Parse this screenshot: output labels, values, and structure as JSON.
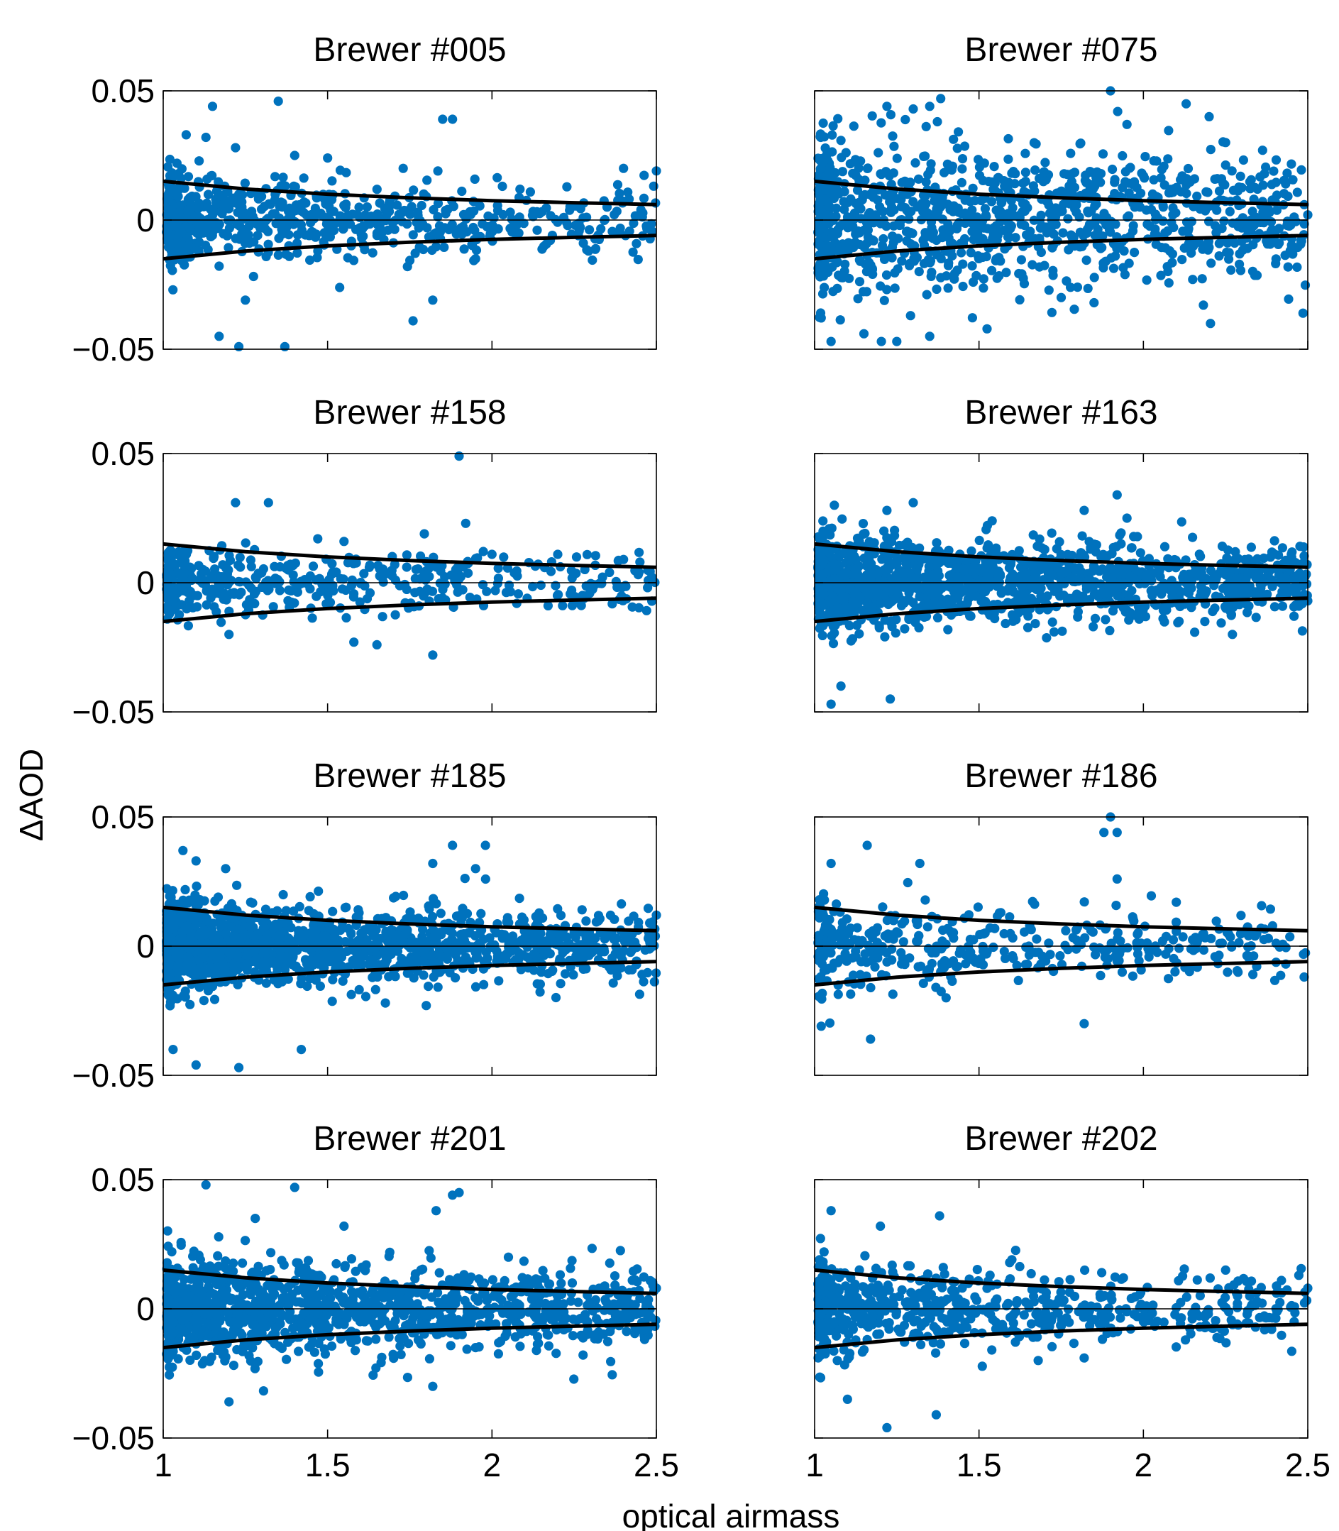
{
  "figure": {
    "ylabel": "ΔAOD",
    "xlabel": "optical airmass"
  },
  "colors": {
    "points": "#0072bd",
    "envelope": "#000000",
    "zero_line": "#000000",
    "axes": "#000000",
    "background": "#ffffff"
  },
  "chart_data": [
    {
      "type": "scatter",
      "title": "Brewer #005",
      "xlim": [
        1,
        2.5
      ],
      "ylim": [
        -0.05,
        0.05
      ],
      "xticks": [
        "1",
        "1.5",
        "2",
        "2.5"
      ],
      "yticks": [
        "-0.05",
        "0",
        "0.05"
      ],
      "grid": false,
      "zero_line": true,
      "envelope": {
        "formula": "±0.015/m",
        "x": [
          1,
          1.25,
          1.5,
          1.75,
          2,
          2.25,
          2.5
        ],
        "upper": [
          0.015,
          0.012,
          0.01,
          0.0086,
          0.0075,
          0.0067,
          0.006
        ],
        "lower": [
          -0.015,
          -0.012,
          -0.01,
          -0.0086,
          -0.0075,
          -0.0067,
          -0.006
        ]
      },
      "points": {
        "n": 700,
        "x_decay": 2.0,
        "spread": 0.0085,
        "y_clip": [
          -0.05,
          0.045
        ],
        "seed": 5,
        "outliers": [
          [
            1.15,
            0.044
          ],
          [
            1.35,
            0.046
          ],
          [
            1.07,
            0.033
          ],
          [
            1.13,
            0.032
          ],
          [
            1.22,
            0.028
          ],
          [
            1.4,
            0.025
          ],
          [
            1.5,
            0.024
          ],
          [
            1.73,
            0.02
          ],
          [
            1.85,
            0.039
          ],
          [
            1.88,
            0.039
          ],
          [
            2.4,
            0.02
          ],
          [
            2.5,
            0.019
          ],
          [
            1.17,
            -0.045
          ],
          [
            1.23,
            -0.049
          ],
          [
            1.37,
            -0.049
          ],
          [
            1.25,
            -0.031
          ],
          [
            1.76,
            -0.039
          ],
          [
            1.82,
            -0.031
          ],
          [
            1.95,
            -0.015
          ],
          [
            2.35,
            0.005
          ]
        ]
      }
    },
    {
      "type": "scatter",
      "title": "Brewer #075",
      "xlim": [
        1,
        2.5
      ],
      "ylim": [
        -0.05,
        0.05
      ],
      "xticks": [
        "1",
        "1.5",
        "2",
        "2.5"
      ],
      "yticks": [
        "-0.05",
        "0",
        "0.05"
      ],
      "grid": false,
      "zero_line": true,
      "envelope": {
        "formula": "±0.015/m",
        "x": [
          1,
          1.25,
          1.5,
          1.75,
          2,
          2.25,
          2.5
        ],
        "upper": [
          0.015,
          0.012,
          0.01,
          0.0086,
          0.0075,
          0.0067,
          0.006
        ],
        "lower": [
          -0.015,
          -0.012,
          -0.01,
          -0.0086,
          -0.0075,
          -0.0067,
          -0.006
        ]
      },
      "points": {
        "n": 1100,
        "x_decay": 1.6,
        "spread": 0.016,
        "y_clip": [
          -0.047,
          0.047
        ],
        "seed": 75,
        "outliers": [
          [
            1.9,
            0.05
          ],
          [
            1.95,
            0.037
          ],
          [
            2.13,
            0.045
          ],
          [
            2.2,
            0.04
          ],
          [
            2.25,
            0.03
          ],
          [
            1.3,
            0.043
          ],
          [
            1.35,
            0.044
          ],
          [
            1.22,
            0.044
          ],
          [
            1.05,
            -0.047
          ],
          [
            1.15,
            -0.044
          ],
          [
            1.25,
            -0.047
          ],
          [
            1.35,
            -0.045
          ],
          [
            1.75,
            -0.03
          ],
          [
            1.85,
            -0.032
          ],
          [
            2.15,
            -0.023
          ],
          [
            2.5,
            0.002
          ]
        ]
      }
    },
    {
      "type": "scatter",
      "title": "Brewer #158",
      "xlim": [
        1,
        2.5
      ],
      "ylim": [
        -0.05,
        0.05
      ],
      "xticks": [
        "1",
        "1.5",
        "2",
        "2.5"
      ],
      "yticks": [
        "-0.05",
        "0",
        "0.05"
      ],
      "grid": false,
      "zero_line": true,
      "envelope": {
        "formula": "±0.015/m",
        "x": [
          1,
          1.25,
          1.5,
          1.75,
          2,
          2.25,
          2.5
        ],
        "upper": [
          0.015,
          0.012,
          0.01,
          0.0086,
          0.0075,
          0.0067,
          0.006
        ],
        "lower": [
          -0.015,
          -0.012,
          -0.01,
          -0.0086,
          -0.0075,
          -0.0067,
          -0.006
        ]
      },
      "points": {
        "n": 500,
        "x_decay": 2.2,
        "spread": 0.0065,
        "y_clip": [
          -0.03,
          0.05
        ],
        "seed": 158,
        "outliers": [
          [
            1.9,
            0.049
          ],
          [
            1.92,
            0.023
          ],
          [
            1.22,
            0.031
          ],
          [
            1.32,
            0.031
          ],
          [
            1.47,
            0.017
          ],
          [
            1.55,
            0.016
          ],
          [
            1.82,
            -0.028
          ],
          [
            1.58,
            -0.023
          ],
          [
            1.65,
            -0.024
          ],
          [
            1.2,
            -0.02
          ],
          [
            2.0,
            0.011
          ],
          [
            2.2,
            0.011
          ],
          [
            2.4,
            0.009
          ],
          [
            2.45,
            0.008
          ]
        ]
      }
    },
    {
      "type": "scatter",
      "title": "Brewer #163",
      "xlim": [
        1,
        2.5
      ],
      "ylim": [
        -0.05,
        0.05
      ],
      "xticks": [
        "1",
        "1.5",
        "2",
        "2.5"
      ],
      "yticks": [
        "-0.05",
        "0",
        "0.05"
      ],
      "grid": false,
      "zero_line": true,
      "envelope": {
        "formula": "±0.015/m",
        "x": [
          1,
          1.25,
          1.5,
          1.75,
          2,
          2.25,
          2.5
        ],
        "upper": [
          0.015,
          0.012,
          0.01,
          0.0086,
          0.0075,
          0.0067,
          0.006
        ],
        "lower": [
          -0.015,
          -0.012,
          -0.01,
          -0.0086,
          -0.0075,
          -0.0067,
          -0.006
        ]
      },
      "points": {
        "n": 1500,
        "x_decay": 1.8,
        "spread": 0.0085,
        "y_clip": [
          -0.047,
          0.035
        ],
        "seed": 163,
        "outliers": [
          [
            1.05,
            -0.047
          ],
          [
            1.08,
            -0.04
          ],
          [
            1.23,
            -0.045
          ],
          [
            1.06,
            0.03
          ],
          [
            1.22,
            0.028
          ],
          [
            1.3,
            0.031
          ],
          [
            1.82,
            0.028
          ],
          [
            1.92,
            0.034
          ],
          [
            1.95,
            0.025
          ],
          [
            2.5,
            -0.007
          ],
          [
            2.45,
            0.011
          ]
        ]
      }
    },
    {
      "type": "scatter",
      "title": "Brewer #185",
      "xlim": [
        1,
        2.5
      ],
      "ylim": [
        -0.05,
        0.05
      ],
      "xticks": [
        "1",
        "1.5",
        "2",
        "2.5"
      ],
      "yticks": [
        "-0.05",
        "0",
        "0.05"
      ],
      "grid": false,
      "zero_line": true,
      "envelope": {
        "formula": "±0.015/m",
        "x": [
          1,
          1.25,
          1.5,
          1.75,
          2,
          2.25,
          2.5
        ],
        "upper": [
          0.015,
          0.012,
          0.01,
          0.0086,
          0.0075,
          0.0067,
          0.006
        ],
        "lower": [
          -0.015,
          -0.012,
          -0.01,
          -0.0086,
          -0.0075,
          -0.0067,
          -0.006
        ]
      },
      "points": {
        "n": 1700,
        "x_decay": 2.3,
        "spread": 0.0085,
        "y_clip": [
          -0.047,
          0.04
        ],
        "seed": 185,
        "outliers": [
          [
            1.06,
            0.037
          ],
          [
            1.1,
            0.033
          ],
          [
            1.19,
            0.03
          ],
          [
            1.88,
            0.039
          ],
          [
            1.98,
            0.039
          ],
          [
            1.82,
            0.032
          ],
          [
            1.95,
            0.03
          ],
          [
            1.1,
            -0.046
          ],
          [
            1.23,
            -0.047
          ],
          [
            1.03,
            -0.04
          ],
          [
            1.42,
            -0.04
          ],
          [
            1.8,
            -0.023
          ],
          [
            2.2,
            0.005
          ],
          [
            2.5,
            0.012
          ]
        ]
      }
    },
    {
      "type": "scatter",
      "title": "Brewer #186",
      "xlim": [
        1,
        2.5
      ],
      "ylim": [
        -0.05,
        0.05
      ],
      "xticks": [
        "1",
        "1.5",
        "2",
        "2.5"
      ],
      "yticks": [
        "-0.05",
        "0",
        "0.05"
      ],
      "grid": false,
      "zero_line": true,
      "envelope": {
        "formula": "±0.015/m",
        "x": [
          1,
          1.25,
          1.5,
          1.75,
          2,
          2.25,
          2.5
        ],
        "upper": [
          0.015,
          0.012,
          0.01,
          0.0086,
          0.0075,
          0.0067,
          0.006
        ],
        "lower": [
          -0.015,
          -0.012,
          -0.01,
          -0.0086,
          -0.0075,
          -0.0067,
          -0.006
        ]
      },
      "points": {
        "n": 420,
        "x_decay": 1.8,
        "spread": 0.0085,
        "y_clip": [
          -0.036,
          0.05
        ],
        "seed": 186,
        "outliers": [
          [
            1.9,
            0.05
          ],
          [
            1.88,
            0.044
          ],
          [
            1.92,
            0.044
          ],
          [
            1.92,
            0.026
          ],
          [
            1.16,
            0.039
          ],
          [
            1.32,
            0.032
          ],
          [
            1.05,
            0.032
          ],
          [
            1.17,
            -0.036
          ],
          [
            1.82,
            -0.03
          ],
          [
            1.4,
            -0.02
          ],
          [
            1.02,
            -0.031
          ],
          [
            2.38,
            0.003
          ],
          [
            2.1,
            0.017
          ]
        ]
      }
    },
    {
      "type": "scatter",
      "title": "Brewer #201",
      "xlim": [
        1,
        2.5
      ],
      "ylim": [
        -0.05,
        0.05
      ],
      "xticks": [
        "1",
        "1.5",
        "2",
        "2.5"
      ],
      "yticks": [
        "-0.05",
        "0",
        "0.05"
      ],
      "grid": false,
      "zero_line": true,
      "envelope": {
        "formula": "±0.015/m",
        "x": [
          1,
          1.25,
          1.5,
          1.75,
          2,
          2.25,
          2.5
        ],
        "upper": [
          0.015,
          0.012,
          0.01,
          0.0086,
          0.0075,
          0.0067,
          0.006
        ],
        "lower": [
          -0.015,
          -0.012,
          -0.01,
          -0.0086,
          -0.0075,
          -0.0067,
          -0.006
        ]
      },
      "points": {
        "n": 1300,
        "x_decay": 1.7,
        "spread": 0.0095,
        "y_clip": [
          -0.036,
          0.048
        ],
        "seed": 201,
        "outliers": [
          [
            1.13,
            0.048
          ],
          [
            1.4,
            0.047
          ],
          [
            1.88,
            0.044
          ],
          [
            1.9,
            0.045
          ],
          [
            1.83,
            0.038
          ],
          [
            1.28,
            0.035
          ],
          [
            1.55,
            0.032
          ],
          [
            2.05,
            0.02
          ],
          [
            1.2,
            -0.036
          ],
          [
            1.82,
            -0.03
          ],
          [
            1.95,
            -0.015
          ],
          [
            2.38,
            -0.002
          ],
          [
            2.45,
            0.004
          ],
          [
            2.5,
            0.008
          ]
        ]
      }
    },
    {
      "type": "scatter",
      "title": "Brewer #202",
      "xlim": [
        1,
        2.5
      ],
      "ylim": [
        -0.05,
        0.05
      ],
      "xticks": [
        "1",
        "1.5",
        "2",
        "2.5"
      ],
      "yticks": [
        "-0.05",
        "0",
        "0.05"
      ],
      "grid": false,
      "zero_line": true,
      "envelope": {
        "formula": "±0.015/m",
        "x": [
          1,
          1.25,
          1.5,
          1.75,
          2,
          2.25,
          2.5
        ],
        "upper": [
          0.015,
          0.012,
          0.01,
          0.0086,
          0.0075,
          0.0067,
          0.006
        ],
        "lower": [
          -0.015,
          -0.012,
          -0.01,
          -0.0086,
          -0.0075,
          -0.0067,
          -0.006
        ]
      },
      "points": {
        "n": 700,
        "x_decay": 2.0,
        "spread": 0.0085,
        "y_clip": [
          -0.046,
          0.038
        ],
        "seed": 202,
        "outliers": [
          [
            1.05,
            0.038
          ],
          [
            1.38,
            0.036
          ],
          [
            1.2,
            0.032
          ],
          [
            1.6,
            0.019
          ],
          [
            1.22,
            -0.046
          ],
          [
            1.37,
            -0.041
          ],
          [
            1.1,
            -0.035
          ],
          [
            1.68,
            -0.02
          ],
          [
            1.82,
            -0.019
          ],
          [
            2.25,
            0.015
          ],
          [
            2.42,
            0.011
          ],
          [
            2.5,
            0.008
          ]
        ]
      }
    }
  ]
}
